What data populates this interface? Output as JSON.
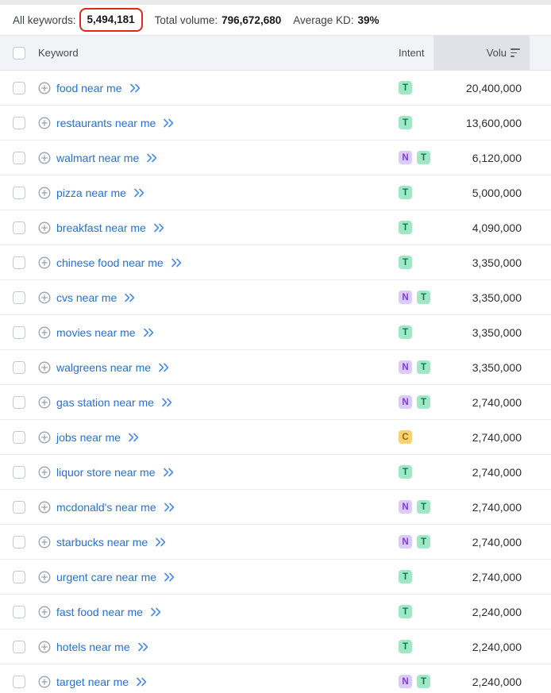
{
  "stats": {
    "all_keywords_label": "All keywords:",
    "all_keywords_value": "5,494,181",
    "total_volume_label": "Total volume:",
    "total_volume_value": "796,672,680",
    "average_kd_label": "Average KD:",
    "average_kd_value": "39%"
  },
  "annotation": {
    "type": "red-highlight-box",
    "target": "all_keywords_value",
    "color": "#e0281e"
  },
  "table": {
    "header": {
      "keyword": "Keyword",
      "intent": "Intent",
      "volume": "Volu"
    },
    "rows": [
      {
        "keyword": "food near me",
        "intents": [
          "T"
        ],
        "volume": "20,400,000"
      },
      {
        "keyword": "restaurants near me",
        "intents": [
          "T"
        ],
        "volume": "13,600,000"
      },
      {
        "keyword": "walmart near me",
        "intents": [
          "N",
          "T"
        ],
        "volume": "6,120,000"
      },
      {
        "keyword": "pizza near me",
        "intents": [
          "T"
        ],
        "volume": "5,000,000"
      },
      {
        "keyword": "breakfast near me",
        "intents": [
          "T"
        ],
        "volume": "4,090,000"
      },
      {
        "keyword": "chinese food near me",
        "intents": [
          "T"
        ],
        "volume": "3,350,000"
      },
      {
        "keyword": "cvs near me",
        "intents": [
          "N",
          "T"
        ],
        "volume": "3,350,000"
      },
      {
        "keyword": "movies near me",
        "intents": [
          "T"
        ],
        "volume": "3,350,000"
      },
      {
        "keyword": "walgreens near me",
        "intents": [
          "N",
          "T"
        ],
        "volume": "3,350,000"
      },
      {
        "keyword": "gas station near me",
        "intents": [
          "N",
          "T"
        ],
        "volume": "2,740,000"
      },
      {
        "keyword": "jobs near me",
        "intents": [
          "C"
        ],
        "volume": "2,740,000"
      },
      {
        "keyword": "liquor store near me",
        "intents": [
          "T"
        ],
        "volume": "2,740,000"
      },
      {
        "keyword": "mcdonald's near me",
        "intents": [
          "N",
          "T"
        ],
        "volume": "2,740,000"
      },
      {
        "keyword": "starbucks near me",
        "intents": [
          "N",
          "T"
        ],
        "volume": "2,740,000"
      },
      {
        "keyword": "urgent care near me",
        "intents": [
          "T"
        ],
        "volume": "2,740,000"
      },
      {
        "keyword": "fast food near me",
        "intents": [
          "T"
        ],
        "volume": "2,240,000"
      },
      {
        "keyword": "hotels near me",
        "intents": [
          "T"
        ],
        "volume": "2,240,000"
      },
      {
        "keyword": "target near me",
        "intents": [
          "N",
          "T"
        ],
        "volume": "2,240,000"
      }
    ]
  },
  "colors": {
    "link_blue": "#2470d8",
    "header_bg": "#f2f3f7",
    "volume_header_bg": "#e0e2e8",
    "annotation_red": "#e0281e",
    "intent_t_bg": "#a0e7c6",
    "intent_t_text": "#0b7e55",
    "intent_n_bg": "#dccafb",
    "intent_n_text": "#7c3aed",
    "intent_c_bg": "#f6d271",
    "intent_c_text": "#9c660c"
  },
  "icons": {
    "add_keyword": "circle-plus-icon",
    "expand": "double-chevron-right-icon",
    "sort": "sort-descending-icon"
  }
}
